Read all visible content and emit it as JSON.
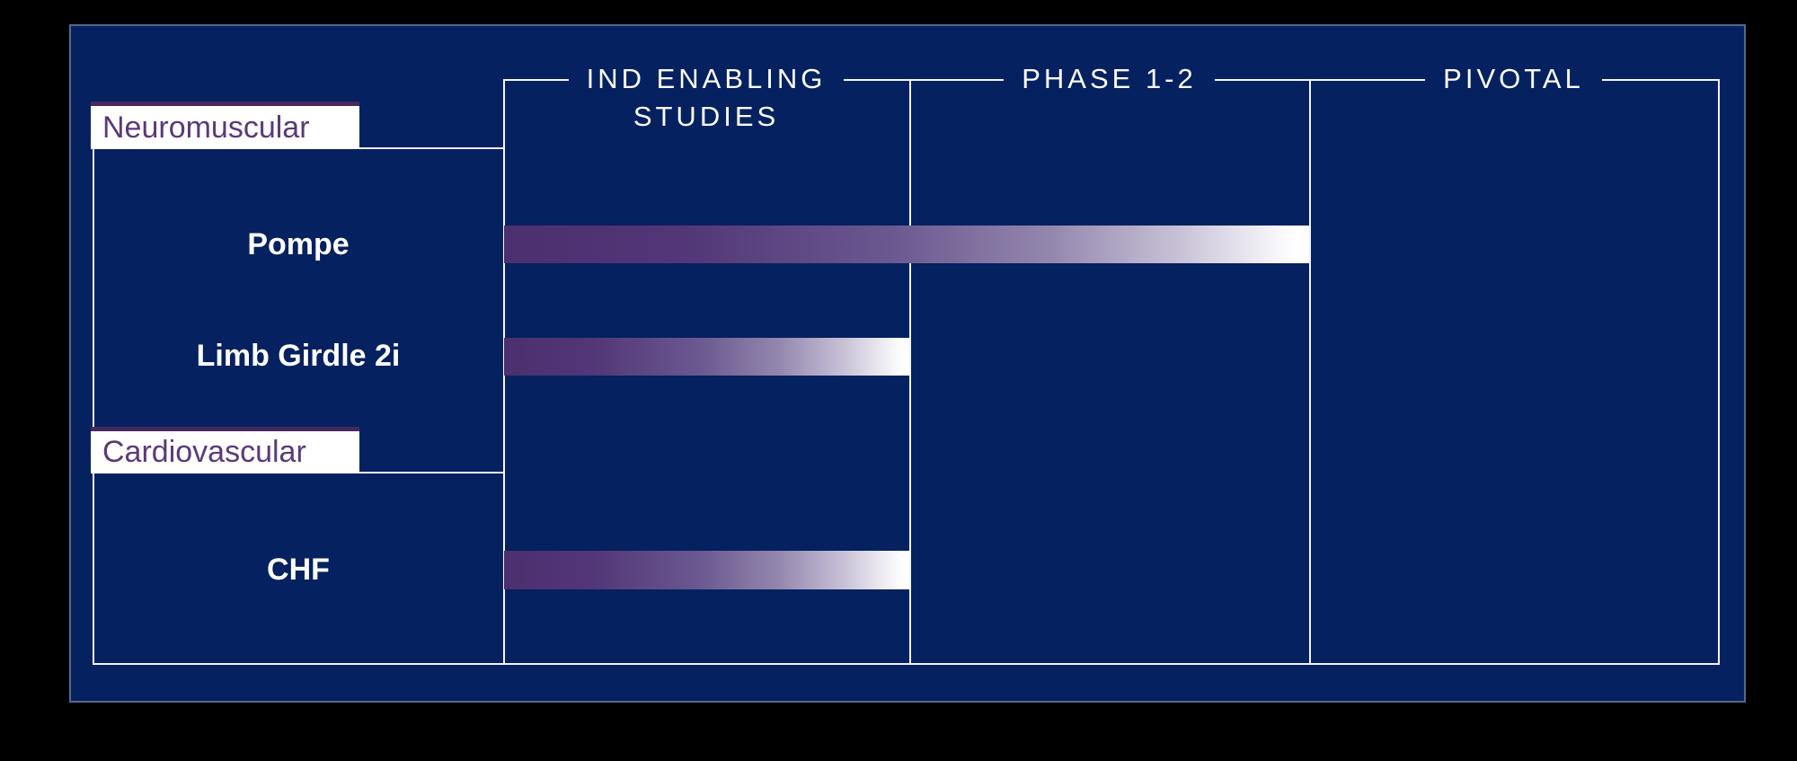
{
  "header": {
    "phases": [
      {
        "line1": "IND ENABLING",
        "line2": "STUDIES"
      },
      {
        "line1": "PHASE 1-2",
        "line2": ""
      },
      {
        "line1": "PIVOTAL",
        "line2": ""
      }
    ]
  },
  "colors": {
    "background": "#000000",
    "panel": "#05215f",
    "panel_border": "#52698c",
    "grid_line": "#f5f4f8",
    "tab_background": "#ffffff",
    "tab_top_border": "#46295f",
    "tab_text": "#5b3a78",
    "program_text": "#ffffff",
    "header_text": "#fdfdfe",
    "bar_gradient": [
      "#4b2f6f",
      "#523677",
      "#6a5890",
      "#9487ae",
      "#c9c2d7",
      "#fefeff"
    ]
  },
  "chart_data": {
    "type": "bar",
    "subtype": "pipeline-progress",
    "orientation": "horizontal",
    "phases": [
      "IND ENABLING STUDIES",
      "PHASE 1-2",
      "PIVOTAL"
    ],
    "groups": [
      {
        "name": "Neuromuscular",
        "programs": [
          {
            "name": "Pompe",
            "phase_start": 0,
            "phase_end": 2
          },
          {
            "name": "Limb Girdle 2i",
            "phase_start": 0,
            "phase_end": 1
          }
        ]
      },
      {
        "name": "Cardiovascular",
        "programs": [
          {
            "name": "CHF",
            "phase_start": 0,
            "phase_end": 1
          }
        ]
      }
    ],
    "legend": "none"
  }
}
